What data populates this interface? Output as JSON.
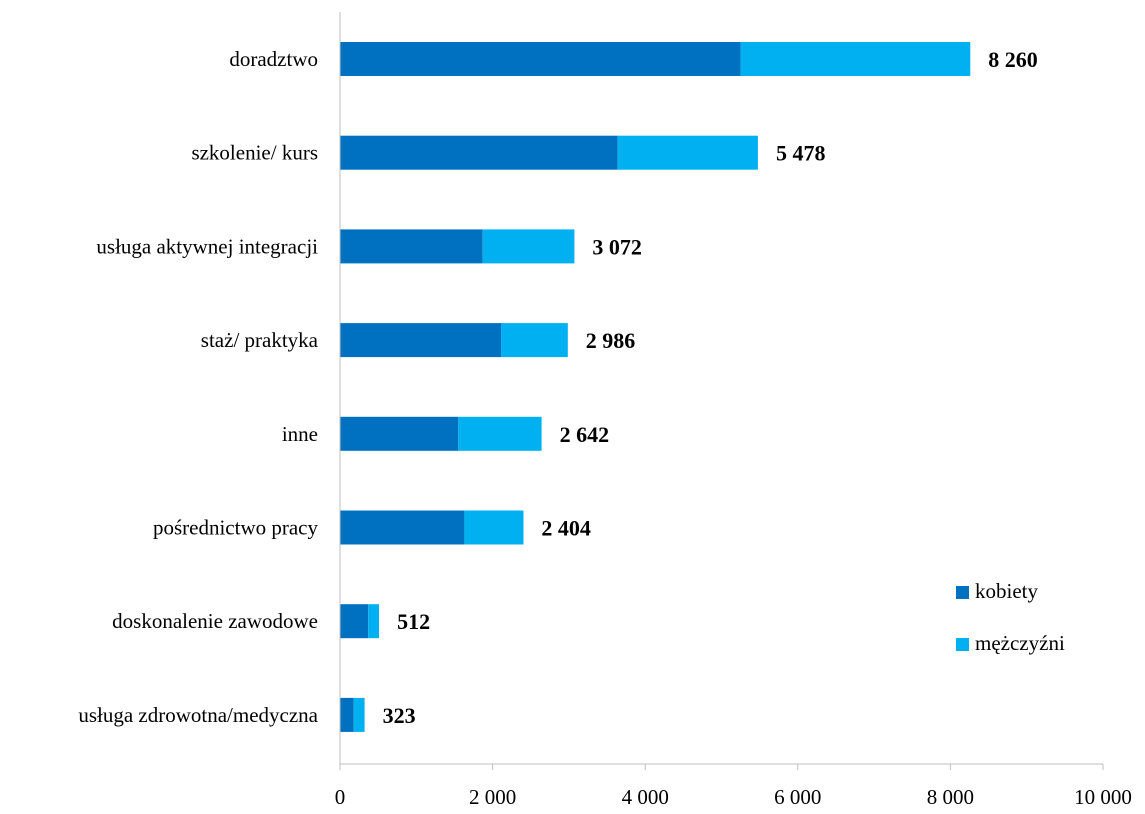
{
  "chart_data": {
    "type": "bar",
    "orientation": "horizontal",
    "stacked": true,
    "categories": [
      "doradztwo",
      "szkolenie/ kurs",
      "usługa aktywnej integracji",
      "staż/ praktyka",
      "inne",
      "pośrednictwo pracy",
      "doskonalenie zawodowe",
      "usługa zdrowotna/medyczna"
    ],
    "series": [
      {
        "name": "kobiety",
        "color": "#0070C0",
        "values": [
          5250,
          3640,
          1870,
          2110,
          1550,
          1630,
          370,
          180
        ]
      },
      {
        "name": "mężczyźni",
        "color": "#00B0F0",
        "values": [
          3010,
          1838,
          1202,
          876,
          1092,
          774,
          142,
          143
        ]
      }
    ],
    "totals": [
      8260,
      5478,
      3072,
      2986,
      2642,
      2404,
      512,
      323
    ],
    "total_labels": [
      "8 260",
      "5 478",
      "3 072",
      "2 986",
      "2 642",
      "2 404",
      "512",
      "323"
    ],
    "xlim": [
      0,
      10000
    ],
    "x_ticks": [
      0,
      2000,
      4000,
      6000,
      8000,
      10000
    ],
    "x_tick_labels": [
      "0",
      "2 000",
      "4 000",
      "6 000",
      "8 000",
      "10 000"
    ],
    "title": "",
    "xlabel": "",
    "ylabel": "",
    "grid": false,
    "legend": {
      "position": "right",
      "entries": [
        "kobiety",
        "mężczyźni"
      ]
    }
  }
}
